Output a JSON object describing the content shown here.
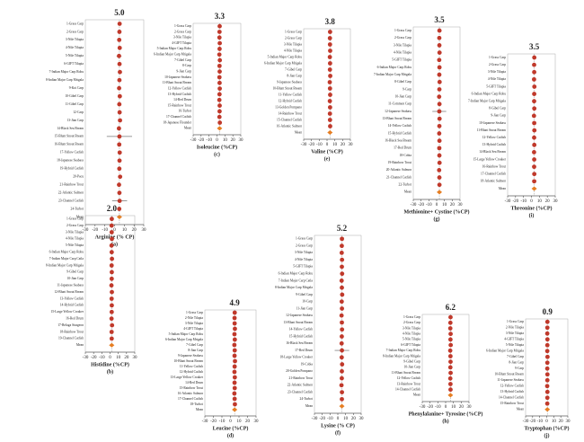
{
  "chart_data": [
    {
      "type": "forest",
      "panel": "(a)",
      "xlabel": "Arginine (% CP)",
      "pooled": 5,
      "pooled_label": "5.0",
      "pooled_name": "Mean",
      "labels": [
        "1-Grass Carp",
        "2-Grass Carp",
        "3-Nile Tilapia",
        "4-Nile Tilapia",
        "5-Nile Tilapia",
        "6-GIFT Tilapia",
        "7-Indian Major Carp Rohu",
        "8-Indian Major Carp Mrigala",
        "9-Koi Carp",
        "10-Gibel Carp",
        "11-Gibel Carp",
        "12-Carp",
        "13-Jian Carp",
        "14-Black Sea Bream",
        "15-Blunt Snout Bream",
        "16-Blunt Snout Bream",
        "17-Yellow Catfish",
        "18-Japanese Seabass",
        "19-Hybrid Catfish",
        "20-Pacu",
        "21-Rainbow Trout",
        "22-Atlantic Salmon",
        "23-Channel Catfish",
        "24-Turbot"
      ],
      "values": [
        5.2,
        5.0,
        4.8,
        5.3,
        4.6,
        5.1,
        5.5,
        5.0,
        4.7,
        5.4,
        4.9,
        5.2,
        5.6,
        4.5,
        5.0,
        4.8,
        5.3,
        5.1,
        4.9,
        5.7,
        4.6,
        5.0,
        5.2,
        4.8
      ],
      "lower": [
        3.9,
        3.2,
        3.5,
        4.0,
        2.1,
        3.8,
        4.2,
        3.6,
        3.1,
        4.0,
        3.4,
        3.9,
        4.1,
        2.9,
        -8.0,
        3.3,
        3.9,
        3.6,
        3.4,
        4.3,
        3.1,
        3.7,
        -2.5,
        3.3
      ],
      "upper": [
        6.5,
        6.8,
        6.1,
        6.6,
        7.1,
        6.4,
        6.8,
        6.4,
        6.3,
        6.8,
        6.4,
        6.5,
        7.1,
        6.1,
        18.0,
        6.3,
        6.7,
        6.6,
        6.4,
        7.1,
        6.1,
        6.3,
        12.9,
        6.3
      ],
      "xlim": [
        -30,
        30
      ],
      "xticks": [
        -30,
        -20,
        -10,
        0,
        10,
        20,
        30
      ]
    },
    {
      "type": "forest",
      "panel": "(b)",
      "xlabel": "Histidine (%CP)",
      "pooled": 2,
      "pooled_label": "2.0",
      "pooled_name": "Mean",
      "labels": [
        "1-Grass Carp",
        "2-Grass Carp",
        "3-Nile Tilapia",
        "4-Nile Tilapia",
        "5-Nile Tilapia",
        "6-Indian Major Carp Rohu",
        "7-Indian Major Carp Catla",
        "8-Indian Major Carp Mrigala",
        "9-Gibel Carp",
        "10-Jian Carp",
        "11-Japanese Seabass",
        "12-Blunt Snout Bream",
        "13-Yellow Catfish",
        "14-Hybrid Catfish",
        "15-Large Yellow Croaker",
        "16-Red Drum",
        "17-Beluga Sturgeon",
        "18-Rainbow Trout",
        "19-Channel Catfish"
      ],
      "values": [
        2.1,
        1.9,
        2.0,
        2.2,
        1.8,
        2.0,
        2.3,
        1.9,
        2.1,
        2.0,
        1.7,
        2.2,
        1.9,
        2.1,
        2.0,
        1.8,
        2.4,
        1.9,
        2.0
      ],
      "lower": [
        1.2,
        0.8,
        1.1,
        1.3,
        0.7,
        1.0,
        1.4,
        0.9,
        1.1,
        1.0,
        0.5,
        1.2,
        0.8,
        1.0,
        1.1,
        0.6,
        1.2,
        0.8,
        1.1
      ],
      "upper": [
        3.0,
        3.0,
        2.9,
        3.1,
        2.9,
        3.0,
        3.2,
        2.9,
        3.1,
        3.0,
        2.9,
        3.2,
        3.0,
        3.2,
        2.9,
        3.0,
        3.6,
        3.0,
        2.9
      ],
      "xlim": [
        -30,
        30
      ],
      "xticks": [
        -30,
        -20,
        -10,
        0,
        10,
        20,
        30
      ]
    },
    {
      "type": "forest",
      "panel": "(c)",
      "xlabel": "Isoleucine (%CP)",
      "pooled": 3.3,
      "pooled_label": "3.3",
      "pooled_name": "Mean",
      "labels": [
        "1-Grass Carp",
        "2-Grass Carp",
        "3-Nile Tilapia",
        "4-GIFT Tilapia",
        "5-Indian Major Carp Rohu",
        "6-Indian Major Carp Mrigala",
        "7-Gibel Carp",
        "8-Carp",
        "9-Jian Carp",
        "10-Japanese Seabass",
        "11-Blunt Snout Bream",
        "12-Yellow Catfish",
        "13-Hybrid Catfish",
        "14-Red Drum",
        "15-Rainbow Trout",
        "16-Turbot",
        "17-Channel Catfish",
        "18-Japanese Flounder"
      ],
      "values": [
        3.4,
        3.2,
        3.1,
        3.5,
        3.3,
        3.0,
        3.6,
        3.2,
        3.4,
        3.1,
        3.3,
        3.5,
        3.2,
        3.0,
        3.4,
        3.3,
        3.1,
        3.6
      ],
      "lower": [
        2.5,
        2.3,
        2.0,
        2.6,
        2.4,
        1.9,
        2.6,
        2.2,
        2.5,
        2.0,
        2.4,
        2.6,
        2.2,
        1.8,
        2.5,
        2.3,
        2.1,
        2.4
      ],
      "upper": [
        4.3,
        4.1,
        4.2,
        4.4,
        4.2,
        4.1,
        4.6,
        4.2,
        4.3,
        4.2,
        4.2,
        4.4,
        4.2,
        4.2,
        4.3,
        4.3,
        4.1,
        4.8
      ],
      "xlim": [
        -30,
        30
      ],
      "xticks": [
        -30,
        -20,
        -10,
        0,
        10,
        20,
        30
      ]
    },
    {
      "type": "forest",
      "panel": "(d)",
      "xlabel": "Leucine (%CP)",
      "pooled": 4.9,
      "pooled_label": "4.9",
      "pooled_name": "Mean",
      "labels": [
        "1-Grass Carp",
        "2-Nile Tilapia",
        "3-Nile Tilapia",
        "4-GIFT Tilapia",
        "5-Indian Major Carp Rohu",
        "6-Indian Major Carp Mrigala",
        "7-Gibel Carp",
        "8-Jian Carp",
        "9-Japanese Seabass",
        "10-Blunt Snout Bream",
        "11-Yellow Catfish",
        "12-Hybrid Catfish",
        "13-Large Yellow Croaker",
        "14-Red Drum",
        "15-Rainbow Trout",
        "16-Atlantic Salmon",
        "17-Channel Catfish",
        "18-Turbot"
      ],
      "values": [
        5.0,
        4.8,
        4.9,
        5.2,
        4.7,
        5.1,
        4.6,
        5.0,
        4.8,
        5.3,
        4.9,
        4.7,
        5.1,
        4.8,
        5.0,
        4.6,
        4.9,
        5.2
      ],
      "lower": [
        3.8,
        3.5,
        3.7,
        4.0,
        3.4,
        3.8,
        3.2,
        3.7,
        3.5,
        4.0,
        3.6,
        3.4,
        3.8,
        3.5,
        3.7,
        3.2,
        3.6,
        3.9
      ],
      "upper": [
        6.2,
        6.1,
        6.1,
        6.4,
        6.0,
        6.4,
        6.0,
        6.3,
        6.1,
        6.6,
        6.2,
        6.0,
        6.4,
        6.1,
        6.3,
        6.0,
        6.2,
        6.5
      ],
      "xlim": [
        -30,
        30
      ],
      "xticks": [
        -30,
        -20,
        -10,
        0,
        10,
        20,
        30
      ]
    },
    {
      "type": "forest",
      "panel": "(e)",
      "xlabel": "Valine (%CP)",
      "pooled": 3.8,
      "pooled_label": "3.8",
      "pooled_name": "Mean",
      "labels": [
        "1-Grass Carp",
        "2-Grass Carp",
        "3-Nile Tilapia",
        "4-Nile Tilapia",
        "5-Indian Major Carp Rohu",
        "6-Indian Major Carp Mrigala",
        "7-Gibel Carp",
        "8-Jian Carp",
        "9-Japanese Seabass",
        "10-Blunt Snout Bream",
        "11-Yellow Catfish",
        "12-Hybrid Catfish",
        "13-Golden Pompano",
        "14-Rainbow Trout",
        "15-Channel Catfish",
        "16-Atlantic Salmon"
      ],
      "values": [
        3.9,
        3.7,
        3.8,
        4.0,
        3.6,
        3.9,
        3.7,
        4.1,
        3.5,
        3.8,
        4.0,
        3.6,
        3.9,
        3.7,
        3.8,
        4.0
      ],
      "lower": [
        2.9,
        2.6,
        2.8,
        3.0,
        2.5,
        2.8,
        2.6,
        3.0,
        2.3,
        2.7,
        2.9,
        2.5,
        2.8,
        2.6,
        2.7,
        2.9
      ],
      "upper": [
        4.9,
        4.8,
        4.8,
        5.0,
        4.7,
        5.0,
        4.8,
        5.2,
        4.7,
        4.9,
        5.1,
        4.7,
        5.0,
        4.8,
        4.9,
        5.1
      ],
      "xlim": [
        -30,
        30
      ],
      "xticks": [
        -30,
        -20,
        -10,
        0,
        10,
        20,
        30
      ]
    },
    {
      "type": "forest",
      "panel": "(f)",
      "xlabel": "Lysine (% CP)",
      "pooled": 5.2,
      "pooled_label": "5.2",
      "pooled_name": "Mean",
      "labels": [
        "1-Grass Carp",
        "2-Grass Carp",
        "3-Nile Tilapia",
        "4-Nile Tilapia",
        "5-GIFT Tilapia",
        "6-Indian Major Carp Rohu",
        "7-Indian Major Carp Catla",
        "8-Indian Major Carp Mrigala",
        "9-Gibel Carp",
        "10-Carp",
        "11-Jian Carp",
        "12-Japanese Seabass",
        "13-Blunt Snout Bream",
        "14-Yellow Catfish",
        "15-Hybrid Catfish",
        "16-Black Sea Bream",
        "17-Red Drum",
        "18-Large Yellow Croaker",
        "19-Cobia",
        "20-Golden Pompano",
        "21-Rainbow Trout",
        "22-Atlantic Salmon",
        "23-Channel Catfish",
        "24-Turbot"
      ],
      "values": [
        5.3,
        5.1,
        5.0,
        5.4,
        5.2,
        5.5,
        4.9,
        5.2,
        5.6,
        5.0,
        5.3,
        4.8,
        5.2,
        5.4,
        5.1,
        4.9,
        5.3,
        5.0,
        5.5,
        5.2,
        5.1,
        4.7,
        5.3,
        5.2
      ],
      "lower": [
        4.0,
        3.8,
        3.6,
        4.1,
        3.9,
        4.2,
        3.5,
        3.9,
        4.2,
        3.6,
        4.0,
        3.3,
        3.9,
        4.1,
        3.8,
        3.5,
        -4.0,
        3.7,
        4.1,
        3.9,
        3.8,
        3.2,
        4.0,
        3.9
      ],
      "upper": [
        6.6,
        6.4,
        6.4,
        6.7,
        6.5,
        6.8,
        6.3,
        6.5,
        7.0,
        6.4,
        6.6,
        6.3,
        6.5,
        6.7,
        6.4,
        6.3,
        14.6,
        6.3,
        6.9,
        6.5,
        6.4,
        6.2,
        6.6,
        6.5
      ],
      "xlim": [
        -30,
        30
      ],
      "xticks": [
        -30,
        -20,
        -10,
        0,
        10,
        20,
        30
      ]
    },
    {
      "type": "forest",
      "panel": "(g)",
      "xlabel": "Methionine+ Cystine (%CP)",
      "pooled": 3.5,
      "pooled_label": "3.5",
      "pooled_name": "Mean",
      "labels": [
        "1-Grass Carp",
        "2-Grass Carp",
        "3-Nile Tilapia",
        "4-Nile Tilapia",
        "5-GIFT Tilapia",
        "6-Indian Major Carp Rohu",
        "7-Indian Major Carp Mrigala",
        "8-Gibel Carp",
        "9-Carp",
        "10-Jian Carp",
        "11-Common Carp",
        "12-Japanese Seabass",
        "13-Blunt Snout Bream",
        "14-Yellow Catfish",
        "15-Hybrid Catfish",
        "16-Black Sea Bream",
        "17-Red Drum",
        "18-Cobia",
        "19-Rainbow Trout",
        "20-Atlantic Salmon",
        "21-Channel Catfish",
        "22-Turbot"
      ],
      "values": [
        3.6,
        3.4,
        3.5,
        3.7,
        3.3,
        3.6,
        3.4,
        3.8,
        3.5,
        3.2,
        3.6,
        3.4,
        3.7,
        3.5,
        3.3,
        3.6,
        3.4,
        3.5,
        3.7,
        3.2,
        3.5,
        3.6
      ],
      "lower": [
        2.5,
        2.3,
        2.4,
        2.6,
        2.1,
        2.5,
        2.2,
        2.6,
        2.4,
        2.0,
        2.5,
        -5.5,
        2.6,
        2.4,
        2.2,
        2.5,
        2.3,
        2.4,
        2.6,
        2.0,
        2.4,
        2.5
      ],
      "upper": [
        4.7,
        4.5,
        4.6,
        4.8,
        4.5,
        4.7,
        4.6,
        5.0,
        4.6,
        4.4,
        4.7,
        12.3,
        4.8,
        4.6,
        4.4,
        4.7,
        4.5,
        4.6,
        4.8,
        4.4,
        4.6,
        4.7
      ],
      "xlim": [
        -30,
        30
      ],
      "xticks": [
        -30,
        -20,
        -10,
        0,
        10,
        20,
        30
      ]
    },
    {
      "type": "forest",
      "panel": "(h)",
      "xlabel": "Phenylalanine+ Tyrosine (%CP)",
      "pooled": 6.2,
      "pooled_label": "6.2",
      "pooled_name": "Mean",
      "labels": [
        "1-Grass Carp",
        "2-Grass Carp",
        "3-Nile Tilapia",
        "4-Nile Tilapia",
        "5-Nile Tilapia",
        "6-GIFT Tilapia",
        "7-Indian Major Carp Rohu",
        "8-Indian Major Carp Mrigala",
        "9-Gibel Carp",
        "10-Jian Carp",
        "11-Blunt Snout Bream",
        "12-Yellow Catfish",
        "13-Rainbow Trout",
        "14-Channel Catfish"
      ],
      "values": [
        6.3,
        6.1,
        6.0,
        6.4,
        6.2,
        6.5,
        5.9,
        6.2,
        6.3,
        6.1,
        6.4,
        6.0,
        6.2,
        6.3
      ],
      "lower": [
        4.9,
        4.7,
        4.5,
        5.0,
        4.8,
        5.1,
        4.4,
        4.8,
        4.9,
        4.6,
        5.0,
        4.5,
        4.8,
        4.9
      ],
      "upper": [
        7.7,
        7.5,
        7.5,
        7.8,
        7.6,
        7.9,
        7.4,
        7.6,
        7.7,
        7.6,
        7.8,
        7.5,
        7.6,
        7.7
      ],
      "xlim": [
        -30,
        30
      ],
      "xticks": [
        -30,
        -20,
        -10,
        0,
        10,
        20,
        30
      ]
    },
    {
      "type": "forest",
      "panel": "(i)",
      "xlabel": "Threonine (%CP)",
      "pooled": 3.5,
      "pooled_label": "3.5",
      "pooled_name": "Mean",
      "labels": [
        "1-Grass Carp",
        "2-Grass Carp",
        "3-Nile Tilapia",
        "4-Nile Tilapia",
        "5-GIFT Tilapia",
        "6-Indian Major Carp Rohu",
        "7-Indian Major Carp Mrigala",
        "8-Gibel Carp",
        "9-Jian Carp",
        "10-Japanese Seabass",
        "11-Blunt Snout Bream",
        "12-Yellow Catfish",
        "13-Hybrid Catfish",
        "14-Black Sea Bream",
        "15-Large Yellow Croaker",
        "16-Rainbow Trout",
        "17-Channel Catfish",
        "18-Atlantic Salmon"
      ],
      "values": [
        3.6,
        3.4,
        3.5,
        3.3,
        3.7,
        3.5,
        3.4,
        3.6,
        3.2,
        3.5,
        3.7,
        3.4,
        3.6,
        3.3,
        3.5,
        3.4,
        3.6,
        3.5
      ],
      "lower": [
        2.6,
        2.3,
        2.5,
        2.2,
        2.7,
        2.4,
        2.3,
        2.5,
        2.0,
        2.4,
        2.6,
        2.3,
        2.5,
        2.1,
        2.4,
        2.3,
        2.5,
        2.4
      ],
      "upper": [
        4.6,
        4.5,
        4.5,
        4.4,
        4.7,
        4.6,
        4.5,
        4.7,
        4.4,
        4.6,
        4.8,
        4.5,
        4.7,
        4.5,
        4.6,
        4.5,
        4.7,
        4.6
      ],
      "xlim": [
        -30,
        30
      ],
      "xticks": [
        -30,
        -20,
        -10,
        0,
        10,
        20,
        30
      ]
    },
    {
      "type": "forest",
      "panel": "(j)",
      "xlabel": "Tryptophan (%CP)",
      "pooled": 0.9,
      "pooled_label": "0.9",
      "pooled_name": "Mean",
      "labels": [
        "1-Grass Carp",
        "2-Nile Tilapia",
        "3-Nile Tilapia",
        "4-GIFT Tilapia",
        "5-Nile Tilapia",
        "6-Indian Major Carp Mrigala",
        "7-Gibel Carp",
        "8-Jian Carp",
        "9-Carp",
        "10-Blunt Snout Bream",
        "11-Japanese Seabass",
        "12-Yellow Catfish",
        "13-Hybrid Catfish",
        "14-Channel Catfish",
        "15-Rainbow Trout"
      ],
      "values": [
        1.0,
        0.9,
        0.8,
        1.0,
        0.9,
        0.8,
        1.1,
        0.9,
        0.8,
        1.0,
        0.9,
        0.7,
        1.0,
        0.9,
        0.8
      ],
      "lower": [
        0.5,
        0.4,
        0.3,
        0.5,
        0.4,
        0.3,
        0.5,
        0.4,
        0.3,
        0.5,
        0.4,
        0.2,
        0.5,
        0.4,
        0.3
      ],
      "upper": [
        1.5,
        1.4,
        1.3,
        1.5,
        1.4,
        1.3,
        1.7,
        1.4,
        1.3,
        1.5,
        1.4,
        1.2,
        1.5,
        1.4,
        1.3
      ],
      "xlim": [
        -30,
        30
      ],
      "xticks": [
        -30,
        -20,
        -10,
        0,
        10,
        20,
        30
      ]
    }
  ]
}
